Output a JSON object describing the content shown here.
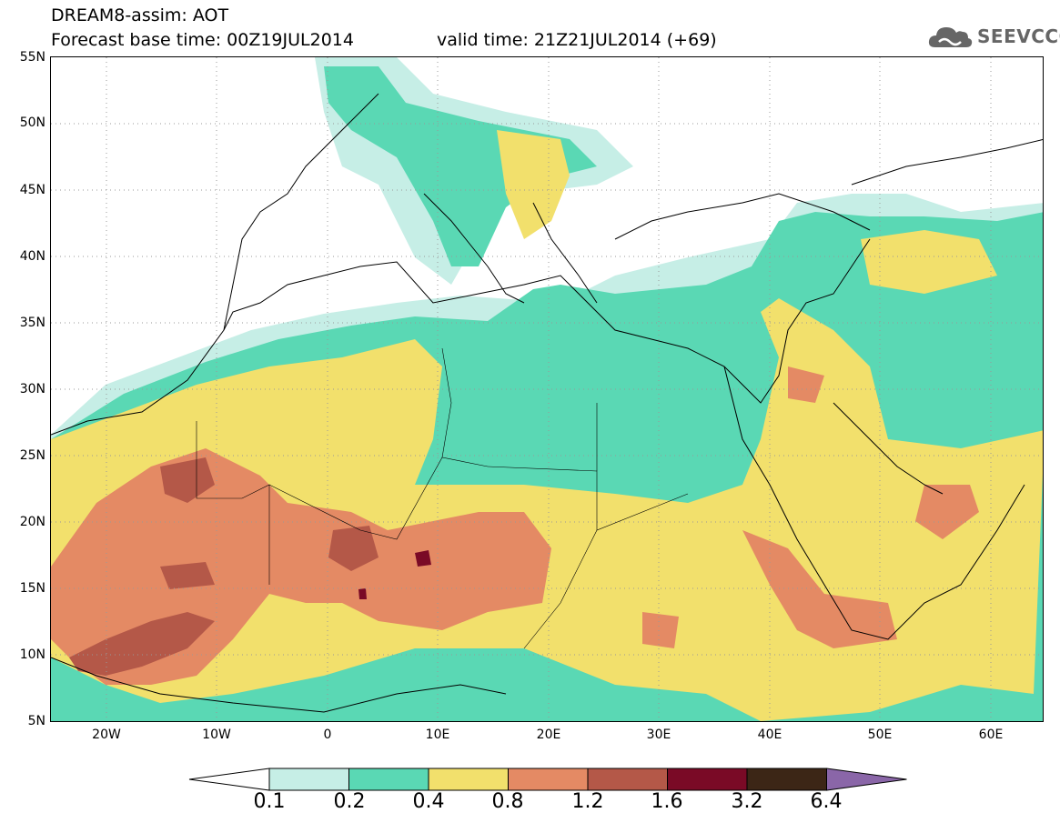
{
  "header": {
    "line1": "DREAM8-assim: AOT",
    "line2": "Forecast base time: 00Z19JUL2014",
    "line3": "valid time: 21Z21JUL2014 (+69)"
  },
  "logo": {
    "text": "SEEVCCC",
    "icon": "cloud-icon"
  },
  "map": {
    "lat_labels": [
      "55N",
      "50N",
      "45N",
      "40N",
      "35N",
      "30N",
      "25N",
      "20N",
      "15N",
      "10N",
      "5N"
    ],
    "lon_labels": [
      "20W",
      "10W",
      "0",
      "10E",
      "20E",
      "30E",
      "40E",
      "50E",
      "60E"
    ],
    "colors": {
      "c01": "#c6eee6",
      "c02": "#5ad8b4",
      "c04": "#f2e06c",
      "c08": "#e48a64",
      "c12": "#b45848",
      "c16": "#7a0a26",
      "c32": "#3c2616",
      "c64": "#8a66a8"
    }
  },
  "colorbar": {
    "labels": [
      "0.1",
      "0.2",
      "0.4",
      "0.8",
      "1.2",
      "1.6",
      "3.2",
      "6.4"
    ],
    "colors": [
      "#ffffff",
      "#c6eee6",
      "#5ad8b4",
      "#f2e06c",
      "#e48a64",
      "#b45848",
      "#7a0a26",
      "#3c2616",
      "#8a66a8"
    ]
  }
}
